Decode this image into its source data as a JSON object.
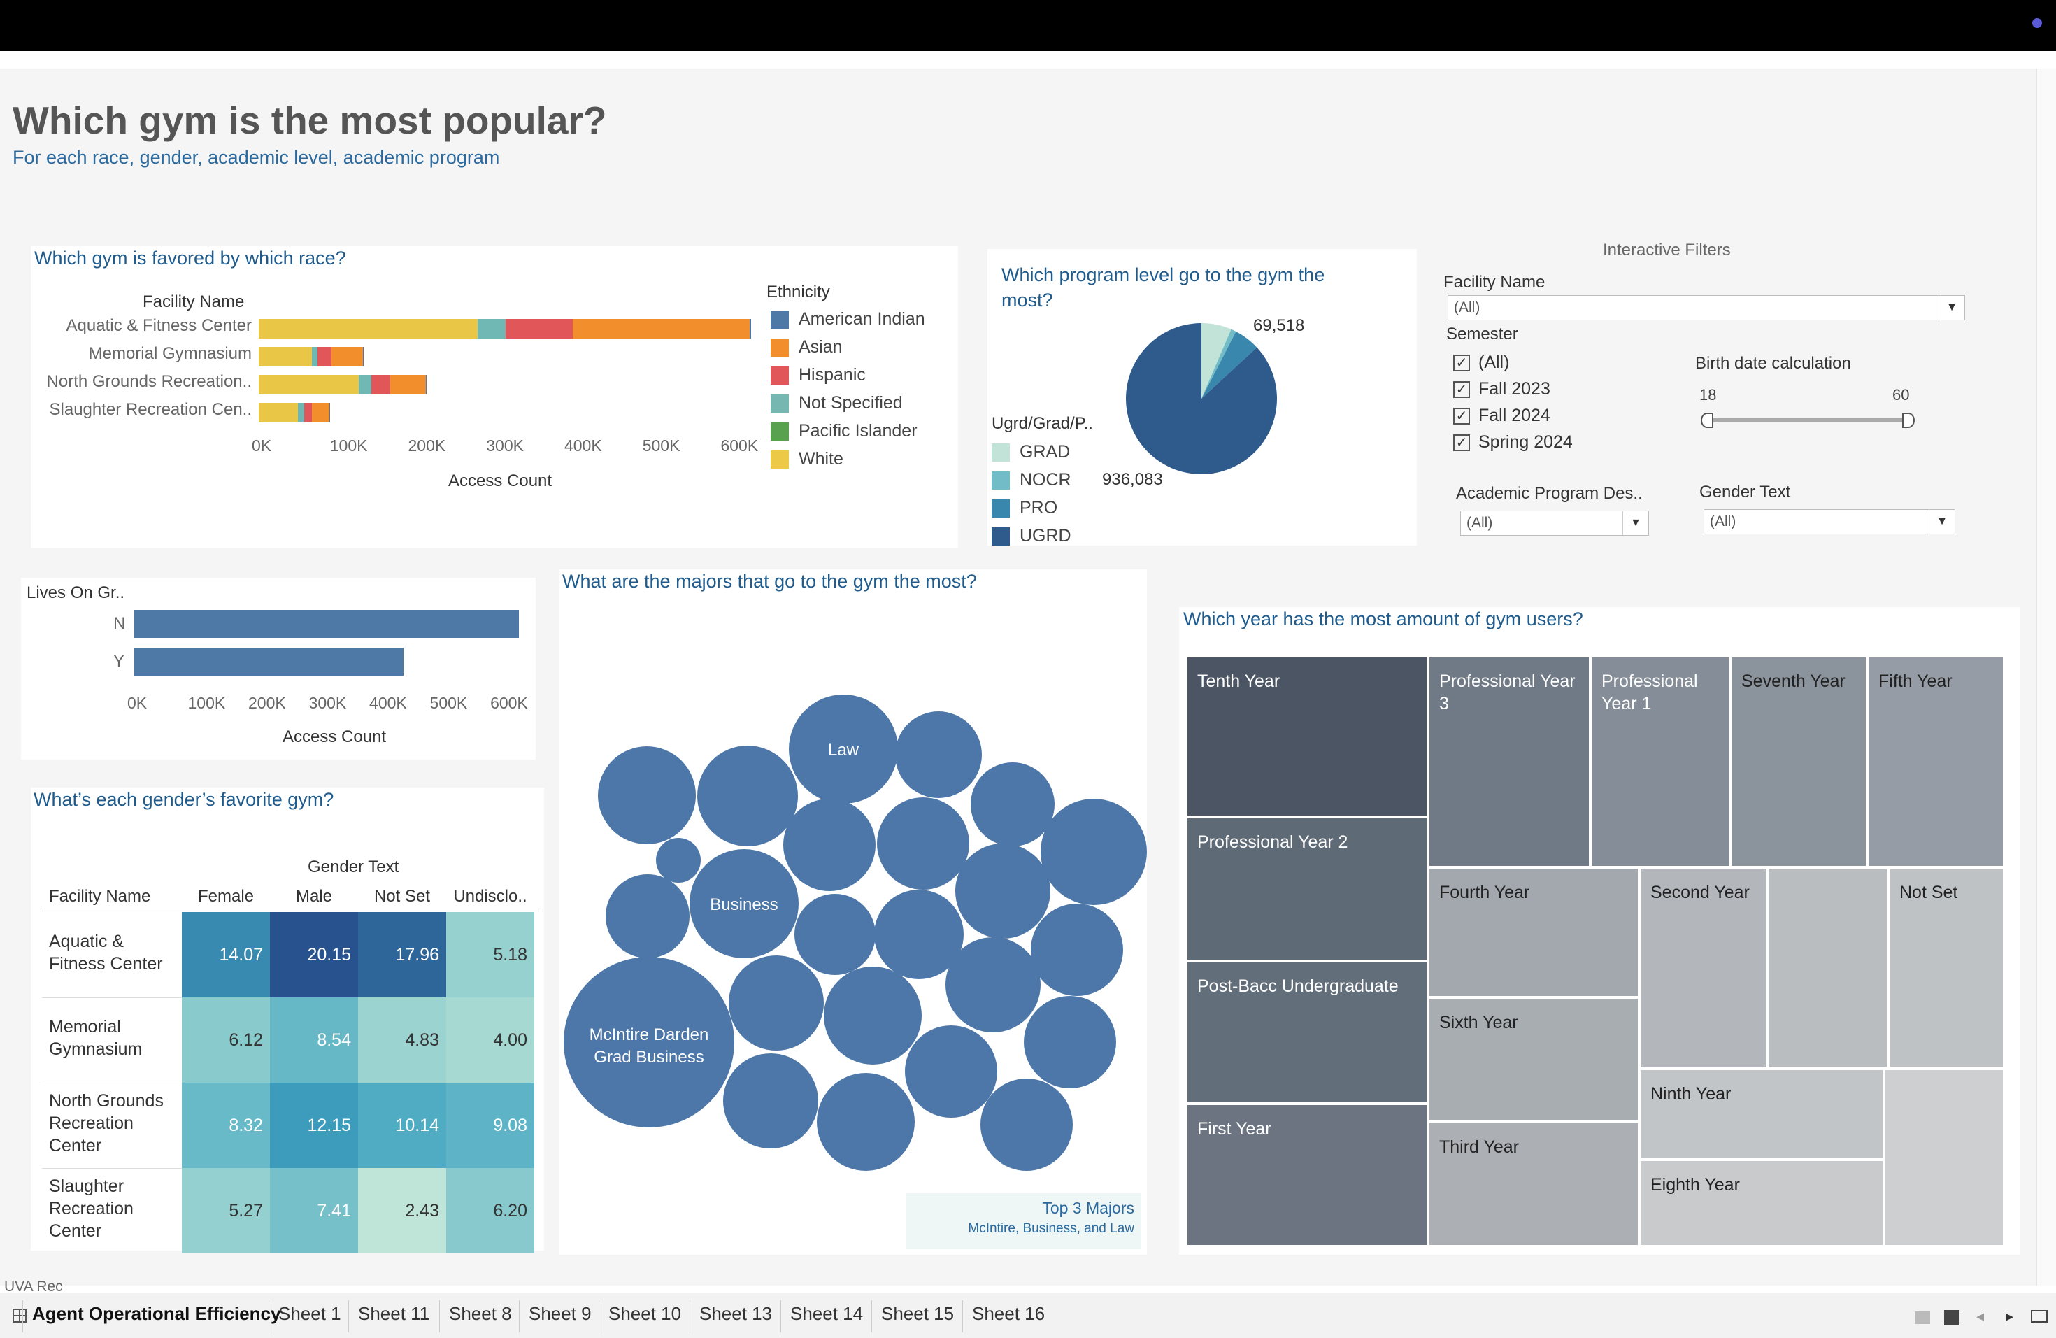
{
  "header": {
    "title": "Which gym is the most popular?",
    "subtitle": "For each race, gender, academic level, academic program"
  },
  "race_chart": {
    "title": "Which gym is favored by which race?",
    "chart_data": {
      "type": "bar",
      "orientation": "horizontal-stacked",
      "facility_header": "Facility Name",
      "categories": [
        "Aquatic & Fitness Center",
        "Memorial Gymnasium",
        "North Grounds Recreation..",
        "Slaughter Recreation Cen.."
      ],
      "series": [
        {
          "name": "White",
          "color": "#eac646",
          "values": [
            280000,
            68000,
            128000,
            50000
          ]
        },
        {
          "name": "Not Specified",
          "color": "#6fb8b3",
          "values": [
            36000,
            7000,
            16000,
            8000
          ]
        },
        {
          "name": "Pacific Islander",
          "color": "#59a14f",
          "values": [
            0,
            0,
            0,
            0
          ]
        },
        {
          "name": "Hispanic",
          "color": "#e15759",
          "values": [
            86000,
            18000,
            24000,
            10000
          ]
        },
        {
          "name": "Asian",
          "color": "#f28e2b",
          "values": [
            226000,
            40000,
            46000,
            22000
          ]
        },
        {
          "name": "American Indian",
          "color": "#4e79a7",
          "values": [
            2000,
            1000,
            1000,
            1000
          ]
        }
      ],
      "xlabel": "Access Count",
      "ticks": [
        "0K",
        "100K",
        "200K",
        "300K",
        "400K",
        "500K",
        "600K"
      ],
      "xlim": [
        0,
        630000
      ]
    },
    "legend": {
      "title": "Ethnicity",
      "items": [
        {
          "label": "American Indian",
          "color": "#4e79a7"
        },
        {
          "label": "Asian",
          "color": "#f28e2b"
        },
        {
          "label": "Hispanic",
          "color": "#e15759"
        },
        {
          "label": "Not Specified",
          "color": "#76b7b2"
        },
        {
          "label": "Pacific Islander",
          "color": "#59a14f"
        },
        {
          "label": "White",
          "color": "#edc948"
        }
      ]
    }
  },
  "program_chart": {
    "title_line1": "Which program level go to the gym the",
    "title_line2": "most?",
    "chart_data": {
      "type": "pie",
      "slices": [
        {
          "name": "GRAD",
          "value": 69518,
          "color": "#c1e3d8"
        },
        {
          "name": "NOCR",
          "value": 12000,
          "color": "#72bcc7"
        },
        {
          "name": "PRO",
          "value": 60000,
          "color": "#3a87ad"
        },
        {
          "name": "UGRD",
          "value": 936083,
          "color": "#2f5b8c"
        }
      ]
    },
    "label_grad": "69,518",
    "label_ugrd": "936,083",
    "legend_title": "Ugrd/Grad/P..",
    "legend": [
      {
        "label": "GRAD",
        "color": "#c1e3d8"
      },
      {
        "label": "NOCR",
        "color": "#72bcc7"
      },
      {
        "label": "PRO",
        "color": "#3a87ad"
      },
      {
        "label": "UGRD",
        "color": "#2f5b8c"
      }
    ]
  },
  "filters": {
    "heading": "Interactive Filters",
    "facility_label": "Facility Name",
    "facility_value": "(All)",
    "semester_label": "Semester",
    "semesters": [
      {
        "label": "(All)",
        "checked": true
      },
      {
        "label": "Fall 2023",
        "checked": true
      },
      {
        "label": "Fall 2024",
        "checked": true
      },
      {
        "label": "Spring 2024",
        "checked": true
      }
    ],
    "birth_label": "Birth date calculation",
    "birth_min": "18",
    "birth_max": "60",
    "program_label": "Academic Program Des..",
    "program_value": "(All)",
    "gender_label": "Gender Text",
    "gender_value": "(All)",
    "checkmark": "✓",
    "arrow": "▼"
  },
  "lives_chart": {
    "header": "Lives On Gr..",
    "chart_data": {
      "type": "bar",
      "orientation": "horizontal",
      "categories": [
        "N",
        "Y"
      ],
      "values": [
        636000,
        445000
      ],
      "xlabel": "Access Count",
      "ticks": [
        "0K",
        "100K",
        "200K",
        "300K",
        "400K",
        "500K",
        "600K"
      ],
      "xlim": [
        0,
        645000
      ],
      "color": "#4e79a7"
    }
  },
  "gender_chart": {
    "title": "What’s each gender’s favorite gym?",
    "gender_header": "Gender Text",
    "facility_header": "Facility Name",
    "chart_data": {
      "type": "heatmap",
      "columns": [
        "Female",
        "Male",
        "Not Set",
        "Undisclo.."
      ],
      "rows": [
        {
          "label": "Aquatic & Fitness Center",
          "lines": [
            "Aquatic &",
            "Fitness Center"
          ],
          "values": [
            "14.07",
            "20.15",
            "17.96",
            "5.18"
          ]
        },
        {
          "label": "Memorial Gymnasium",
          "lines": [
            "Memorial",
            "Gymnasium"
          ],
          "values": [
            "6.12",
            "8.54",
            "4.83",
            "4.00"
          ]
        },
        {
          "label": "North Grounds Recreation Center",
          "lines": [
            "North Grounds",
            "Recreation",
            "Center"
          ],
          "values": [
            "8.32",
            "12.15",
            "10.14",
            "9.08"
          ]
        },
        {
          "label": "Slaughter Recreation Center",
          "lines": [
            "Slaughter",
            "Recreation",
            "Center"
          ],
          "values": [
            "5.27",
            "7.41",
            "2.43",
            "6.20"
          ]
        }
      ]
    }
  },
  "majors_chart": {
    "title": "What are the majors that go to the gym the most?",
    "chart_data": {
      "type": "bubble",
      "labels": [
        "Law",
        "Business",
        "McIntire Darden\nGrad Business"
      ]
    },
    "law": "Law",
    "business": "Business",
    "mcintire_line1": "McIntire Darden",
    "mcintire_line2": "Grad Business",
    "caption_title": "Top 3 Majors",
    "caption_sub": "McIntire, Business, and Law"
  },
  "year_chart": {
    "title": "Which year has the most amount of gym users?",
    "chart_data": {
      "type": "treemap",
      "cells": [
        "Tenth Year",
        "Professional Year 2",
        "Post-Bacc Undergraduate",
        "First Year",
        "Professional Year 3",
        "Professional Year 1",
        "Seventh Year",
        "Fifth Year",
        "Fourth Year",
        "Second Year",
        "Not Set",
        "Sixth Year",
        "Third Year",
        "Ninth Year",
        "Eighth Year"
      ]
    },
    "cells": {
      "tenth": "Tenth Year",
      "pro2": "Professional Year 2",
      "postbacc": "Post-Bacc Undergraduate",
      "first": "First Year",
      "pro3_l1": "Professional Year",
      "pro3_l2": "3",
      "pro1_l1": "Professional",
      "pro1_l2": "Year 1",
      "seventh": "Seventh Year",
      "fifth": "Fifth Year",
      "fourth": "Fourth Year",
      "second": "Second Year",
      "notset": "Not Set",
      "sixth": "Sixth Year",
      "third": "Third Year",
      "ninth": "Ninth Year",
      "eighth": "Eighth Year"
    }
  },
  "footer": {
    "note": "UVA Rec",
    "tabs": [
      "Agent Operational Efficiency",
      "Sheet 1",
      "Sheet 11",
      "Sheet 8",
      "Sheet 9",
      "Sheet 10",
      "Sheet 13",
      "Sheet 14",
      "Sheet 15",
      "Sheet 16"
    ]
  }
}
